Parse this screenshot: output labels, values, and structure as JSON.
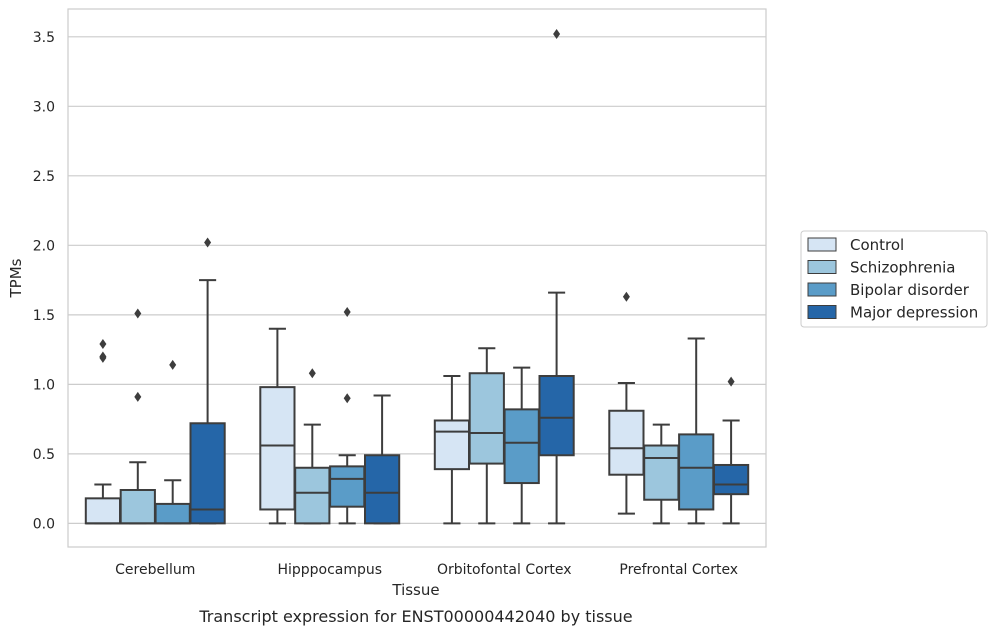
{
  "caption": "Transcript expression for ENST00000442040 by tissue",
  "chart_data": {
    "type": "boxplot",
    "xlabel": "Tissue",
    "ylabel": "TPMs",
    "ylim": [
      -0.17,
      3.7
    ],
    "yticks": [
      "0.0",
      "0.5",
      "1.0",
      "1.5",
      "2.0",
      "2.5",
      "3.0",
      "3.5"
    ],
    "grid": "horizontal",
    "legend_position": "right",
    "categories": [
      "Cerebellum",
      "Hipppocampus",
      "Orbitofontal Cortex",
      "Prefrontal Cortex"
    ],
    "series": [
      {
        "name": "Control",
        "color": "#d6e5f4",
        "boxes": [
          {
            "wlo": 0.0,
            "q1": 0.0,
            "med": 0.0,
            "q3": 0.18,
            "whi": 0.28,
            "fliers": [
              1.19,
              1.2,
              1.29
            ]
          },
          {
            "wlo": 0.0,
            "q1": 0.1,
            "med": 0.56,
            "q3": 0.98,
            "whi": 1.4,
            "fliers": []
          },
          {
            "wlo": 0.0,
            "q1": 0.39,
            "med": 0.66,
            "q3": 0.74,
            "whi": 1.06,
            "fliers": []
          },
          {
            "wlo": 0.07,
            "q1": 0.35,
            "med": 0.54,
            "q3": 0.81,
            "whi": 1.01,
            "fliers": [
              1.63
            ]
          }
        ]
      },
      {
        "name": "Schizophrenia",
        "color": "#9cc6dd",
        "boxes": [
          {
            "wlo": 0.0,
            "q1": 0.0,
            "med": 0.0,
            "q3": 0.24,
            "whi": 0.44,
            "fliers": [
              0.91,
              1.51
            ]
          },
          {
            "wlo": 0.0,
            "q1": 0.0,
            "med": 0.22,
            "q3": 0.4,
            "whi": 0.71,
            "fliers": [
              1.08
            ]
          },
          {
            "wlo": 0.0,
            "q1": 0.43,
            "med": 0.65,
            "q3": 1.08,
            "whi": 1.26,
            "fliers": []
          },
          {
            "wlo": 0.0,
            "q1": 0.17,
            "med": 0.47,
            "q3": 0.56,
            "whi": 0.71,
            "fliers": []
          }
        ]
      },
      {
        "name": "Bipolar disorder",
        "color": "#5a9cc8",
        "boxes": [
          {
            "wlo": 0.0,
            "q1": 0.0,
            "med": 0.0,
            "q3": 0.14,
            "whi": 0.31,
            "fliers": [
              1.14
            ]
          },
          {
            "wlo": 0.0,
            "q1": 0.12,
            "med": 0.32,
            "q3": 0.41,
            "whi": 0.49,
            "fliers": [
              0.9,
              1.52
            ]
          },
          {
            "wlo": 0.0,
            "q1": 0.29,
            "med": 0.58,
            "q3": 0.82,
            "whi": 1.12,
            "fliers": []
          },
          {
            "wlo": 0.0,
            "q1": 0.1,
            "med": 0.4,
            "q3": 0.64,
            "whi": 1.33,
            "fliers": []
          }
        ]
      },
      {
        "name": "Major depression",
        "color": "#2566a8",
        "boxes": [
          {
            "wlo": 0.0,
            "q1": 0.0,
            "med": 0.1,
            "q3": 0.72,
            "whi": 1.75,
            "fliers": [
              2.02
            ]
          },
          {
            "wlo": 0.0,
            "q1": 0.0,
            "med": 0.22,
            "q3": 0.49,
            "whi": 0.92,
            "fliers": []
          },
          {
            "wlo": 0.0,
            "q1": 0.49,
            "med": 0.76,
            "q3": 1.06,
            "whi": 1.66,
            "fliers": [
              3.52
            ]
          },
          {
            "wlo": 0.0,
            "q1": 0.21,
            "med": 0.28,
            "q3": 0.42,
            "whi": 0.74,
            "fliers": [
              1.02
            ]
          }
        ]
      }
    ]
  }
}
